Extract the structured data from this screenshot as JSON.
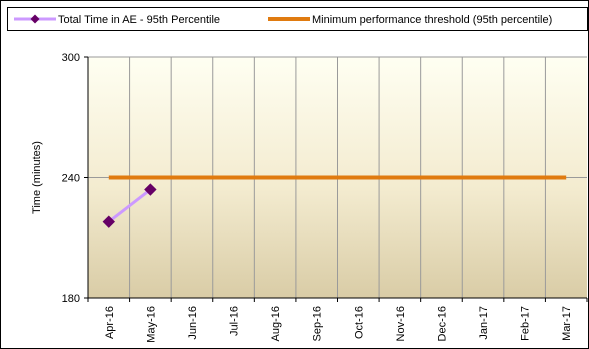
{
  "chart_data": {
    "type": "line",
    "title": "",
    "xlabel": "",
    "ylabel": "Time (minutes)",
    "ylim": [
      180,
      300
    ],
    "yticks": [
      180,
      240,
      300
    ],
    "grid": true,
    "legend_position": "top",
    "categories": [
      "Apr-16",
      "May-16",
      "Jun-16",
      "Jul-16",
      "Aug-16",
      "Sep-16",
      "Oct-16",
      "Nov-16",
      "Dec-16",
      "Jan-17",
      "Feb-17",
      "Mar-17"
    ],
    "series": [
      {
        "name": "Total Time in AE - 95th Percentile",
        "color": "#CC99FF",
        "marker_color": "#660066",
        "values": [
          218,
          234,
          null,
          null,
          null,
          null,
          null,
          null,
          null,
          null,
          null,
          null
        ]
      },
      {
        "name": "Minimum performance threshold (95th percentile)",
        "color": "#E07B10",
        "values": [
          240,
          240,
          240,
          240,
          240,
          240,
          240,
          240,
          240,
          240,
          240,
          240
        ]
      }
    ]
  }
}
